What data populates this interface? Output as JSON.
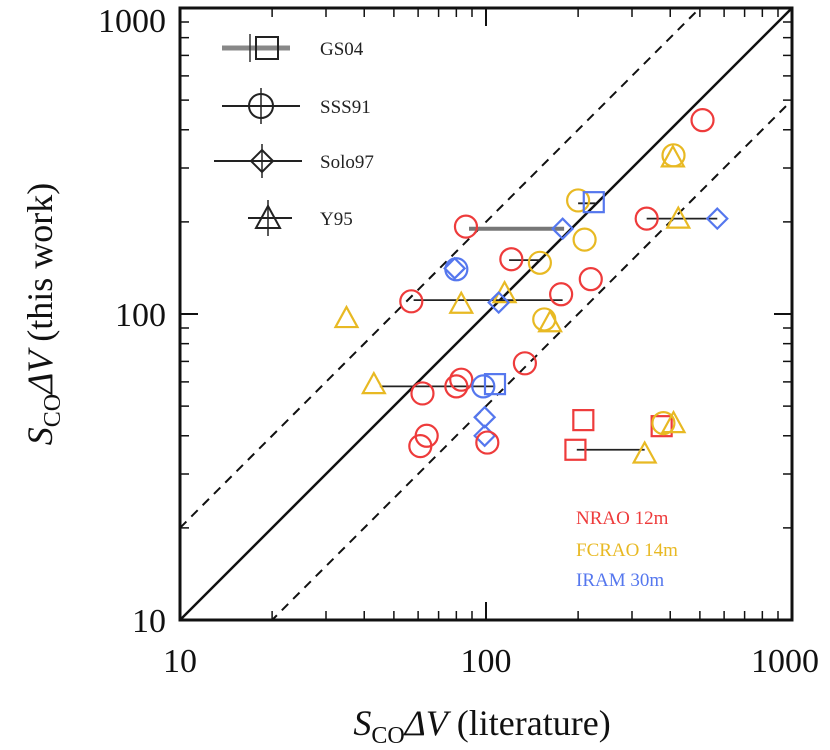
{
  "chart_data": {
    "type": "scatter",
    "scale": "log-log",
    "xlim": [
      10,
      1000
    ],
    "ylim": [
      10,
      1000
    ],
    "x_ticks": [
      10,
      100,
      1000
    ],
    "y_ticks": [
      10,
      100,
      1000
    ],
    "tick_labels": {
      "x": [
        "10",
        "100",
        "1000"
      ],
      "y": [
        "10",
        "100",
        "1000"
      ]
    },
    "xlabel": {
      "s": "S",
      "sub": "CO",
      "delta": "ΔV",
      "rest": " (literature)"
    },
    "ylabel": {
      "s": "S",
      "sub": "CO",
      "delta": "ΔV",
      "rest": " (this work)"
    },
    "reference_lines": [
      {
        "name": "one-to-one",
        "factor": 1,
        "style": "solid"
      },
      {
        "name": "factor-two-upper",
        "factor": 2,
        "style": "dashed"
      },
      {
        "name": "factor-two-lower",
        "factor": 0.5,
        "style": "dashed"
      }
    ],
    "references": [
      {
        "key": "GS04",
        "label": "GS04",
        "marker": "square",
        "connector": "thick-gray"
      },
      {
        "key": "SSS91",
        "label": "SSS91",
        "marker": "circle",
        "connector": "thin-black"
      },
      {
        "key": "Solo97",
        "label": "Solo97",
        "marker": "diamond",
        "connector": "thin-black"
      },
      {
        "key": "Y95",
        "label": "Y95",
        "marker": "triangle",
        "connector": "thin-black"
      }
    ],
    "telescopes": [
      {
        "key": "NRAO",
        "label": "NRAO 12m",
        "color": "#ee3b3b"
      },
      {
        "key": "FCRAO",
        "label": "FCRAO 14m",
        "color": "#e8b923"
      },
      {
        "key": "IRAM",
        "label": "IRAM 30m",
        "color": "#5577ee"
      }
    ],
    "connectors": [
      {
        "x1": 88,
        "x2": 180,
        "y": 190,
        "style": "thick"
      },
      {
        "x1": 119,
        "x2": 150,
        "y": 150,
        "style": "thin"
      },
      {
        "x1": 58,
        "x2": 178,
        "y": 111,
        "style": "thin"
      },
      {
        "x1": 45,
        "x2": 107,
        "y": 58,
        "style": "thin"
      },
      {
        "x1": 198,
        "x2": 330,
        "y": 36,
        "style": "thin"
      },
      {
        "x1": 335,
        "x2": 570,
        "y": 205,
        "style": "thin"
      },
      {
        "x1": 200,
        "x2": 228,
        "y": 230,
        "style": "thin"
      }
    ],
    "points": [
      {
        "x": 510,
        "y": 430,
        "marker": "circle",
        "telescope": "NRAO"
      },
      {
        "x": 410,
        "y": 330,
        "marker": "circle",
        "telescope": "FCRAO"
      },
      {
        "x": 408,
        "y": 325,
        "marker": "triangle",
        "telescope": "FCRAO"
      },
      {
        "x": 200,
        "y": 235,
        "marker": "circle",
        "telescope": "FCRAO"
      },
      {
        "x": 225,
        "y": 232,
        "marker": "square",
        "telescope": "IRAM"
      },
      {
        "x": 210,
        "y": 175,
        "marker": "circle",
        "telescope": "FCRAO"
      },
      {
        "x": 86,
        "y": 193,
        "marker": "circle",
        "telescope": "NRAO"
      },
      {
        "x": 178,
        "y": 190,
        "marker": "diamond",
        "telescope": "IRAM"
      },
      {
        "x": 335,
        "y": 205,
        "marker": "circle",
        "telescope": "NRAO"
      },
      {
        "x": 425,
        "y": 205,
        "marker": "triangle",
        "telescope": "FCRAO"
      },
      {
        "x": 570,
        "y": 205,
        "marker": "diamond",
        "telescope": "IRAM"
      },
      {
        "x": 150,
        "y": 147,
        "marker": "circle",
        "telescope": "FCRAO"
      },
      {
        "x": 121,
        "y": 151,
        "marker": "circle",
        "telescope": "NRAO"
      },
      {
        "x": 80,
        "y": 140,
        "marker": "circle",
        "telescope": "IRAM"
      },
      {
        "x": 79,
        "y": 141,
        "marker": "diamond",
        "telescope": "IRAM"
      },
      {
        "x": 220,
        "y": 130,
        "marker": "circle",
        "telescope": "NRAO"
      },
      {
        "x": 57,
        "y": 110,
        "marker": "circle",
        "telescope": "NRAO"
      },
      {
        "x": 83,
        "y": 108,
        "marker": "triangle",
        "telescope": "FCRAO"
      },
      {
        "x": 115,
        "y": 117,
        "marker": "triangle",
        "telescope": "FCRAO"
      },
      {
        "x": 110,
        "y": 109,
        "marker": "diamond",
        "telescope": "IRAM"
      },
      {
        "x": 176,
        "y": 116,
        "marker": "circle",
        "telescope": "NRAO"
      },
      {
        "x": 35,
        "y": 97,
        "marker": "triangle",
        "telescope": "FCRAO"
      },
      {
        "x": 155,
        "y": 96,
        "marker": "circle",
        "telescope": "FCRAO"
      },
      {
        "x": 162,
        "y": 94,
        "marker": "triangle",
        "telescope": "FCRAO"
      },
      {
        "x": 134,
        "y": 69,
        "marker": "circle",
        "telescope": "NRAO"
      },
      {
        "x": 43,
        "y": 59,
        "marker": "triangle",
        "telescope": "FCRAO"
      },
      {
        "x": 62,
        "y": 55,
        "marker": "circle",
        "telescope": "NRAO"
      },
      {
        "x": 80,
        "y": 58,
        "marker": "circle",
        "telescope": "NRAO"
      },
      {
        "x": 83,
        "y": 61,
        "marker": "circle",
        "telescope": "NRAO"
      },
      {
        "x": 98,
        "y": 58,
        "marker": "circle",
        "telescope": "IRAM"
      },
      {
        "x": 107,
        "y": 59,
        "marker": "square",
        "telescope": "IRAM"
      },
      {
        "x": 99,
        "y": 46,
        "marker": "diamond",
        "telescope": "IRAM"
      },
      {
        "x": 99,
        "y": 40,
        "marker": "diamond",
        "telescope": "IRAM"
      },
      {
        "x": 61,
        "y": 37,
        "marker": "circle",
        "telescope": "NRAO"
      },
      {
        "x": 64,
        "y": 40,
        "marker": "circle",
        "telescope": "NRAO"
      },
      {
        "x": 101,
        "y": 38,
        "marker": "circle",
        "telescope": "NRAO"
      },
      {
        "x": 208,
        "y": 45,
        "marker": "square",
        "telescope": "NRAO"
      },
      {
        "x": 196,
        "y": 36,
        "marker": "square",
        "telescope": "NRAO"
      },
      {
        "x": 330,
        "y": 35,
        "marker": "triangle",
        "telescope": "FCRAO"
      },
      {
        "x": 375,
        "y": 43,
        "marker": "square",
        "telescope": "NRAO"
      },
      {
        "x": 380,
        "y": 44,
        "marker": "circle",
        "telescope": "FCRAO"
      },
      {
        "x": 410,
        "y": 44,
        "marker": "triangle",
        "telescope": "FCRAO"
      }
    ]
  }
}
